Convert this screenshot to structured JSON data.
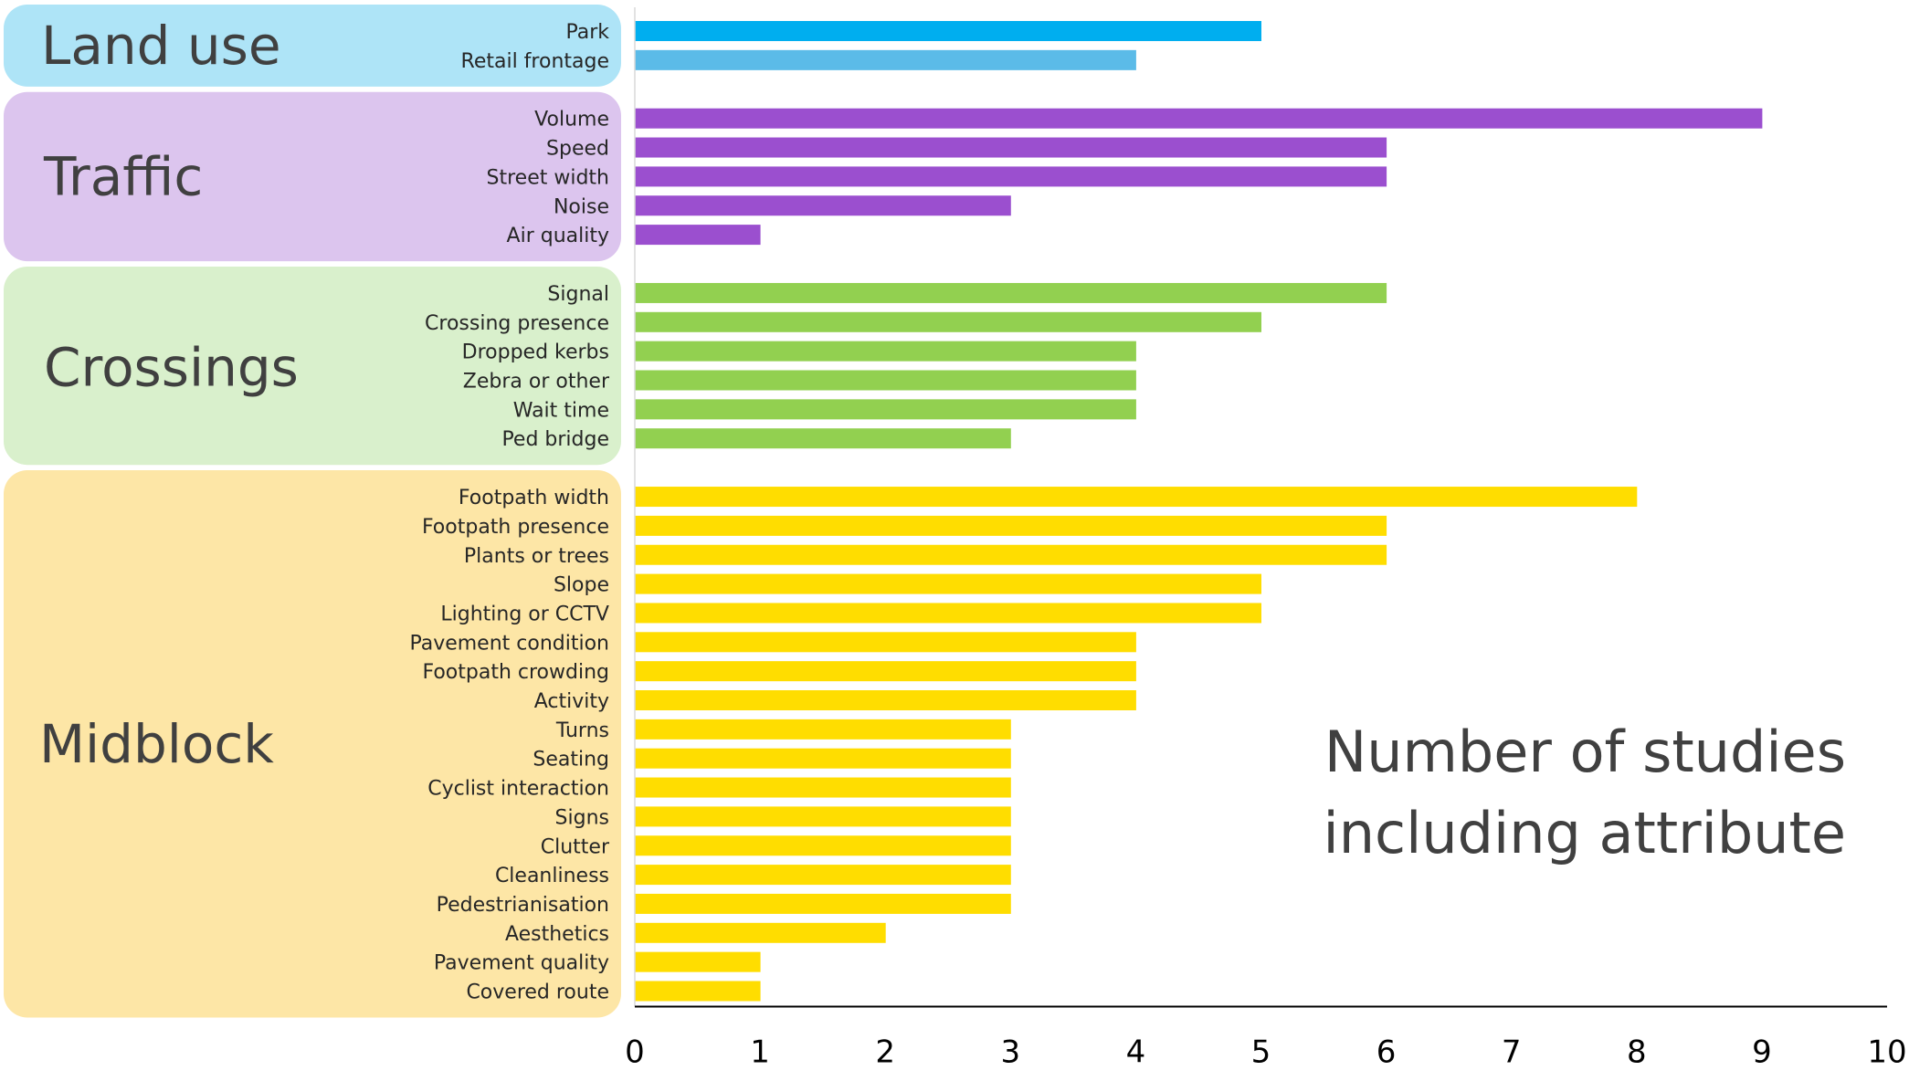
{
  "chart_data": {
    "type": "bar",
    "orientation": "horizontal",
    "axis_title_lines": [
      "Number of studies",
      "including attribute"
    ],
    "xlim": [
      0,
      10
    ],
    "x_ticks": [
      "0",
      "1",
      "2",
      "3",
      "4",
      "5",
      "6",
      "7",
      "8",
      "9",
      "10"
    ],
    "grid": false,
    "groups": [
      {
        "name": "Land use",
        "panel_color": "#aee4f7",
        "categories": [
          {
            "label": "Park",
            "value": 5,
            "color": "#00aeef"
          },
          {
            "label": "Retail frontage",
            "value": 4,
            "color": "#5bbbe8"
          }
        ]
      },
      {
        "name": "Traffic",
        "panel_color": "#dcc5ee",
        "categories": [
          {
            "label": "Volume",
            "value": 9,
            "color": "#9b4fcf"
          },
          {
            "label": "Speed",
            "value": 6,
            "color": "#9b4fcf"
          },
          {
            "label": "Street width",
            "value": 6,
            "color": "#9b4fcf"
          },
          {
            "label": "Noise",
            "value": 3,
            "color": "#9b4fcf"
          },
          {
            "label": "Air quality",
            "value": 1,
            "color": "#9b4fcf"
          }
        ]
      },
      {
        "name": "Crossings",
        "panel_color": "#d9f0cc",
        "categories": [
          {
            "label": "Signal",
            "value": 6,
            "color": "#92d050"
          },
          {
            "label": "Crossing presence",
            "value": 5,
            "color": "#92d050"
          },
          {
            "label": "Dropped kerbs",
            "value": 4,
            "color": "#92d050"
          },
          {
            "label": "Zebra or other",
            "value": 4,
            "color": "#92d050"
          },
          {
            "label": "Wait time",
            "value": 4,
            "color": "#92d050"
          },
          {
            "label": "Ped bridge",
            "value": 3,
            "color": "#92d050"
          }
        ]
      },
      {
        "name": "Midblock",
        "panel_color": "#fde6a6",
        "categories": [
          {
            "label": "Footpath width",
            "value": 8,
            "color": "#ffdd00"
          },
          {
            "label": "Footpath presence",
            "value": 6,
            "color": "#ffdd00"
          },
          {
            "label": "Plants or trees",
            "value": 6,
            "color": "#ffdd00"
          },
          {
            "label": "Slope",
            "value": 5,
            "color": "#ffdd00"
          },
          {
            "label": "Lighting or CCTV",
            "value": 5,
            "color": "#ffdd00"
          },
          {
            "label": "Pavement condition",
            "value": 4,
            "color": "#ffdd00"
          },
          {
            "label": "Footpath crowding",
            "value": 4,
            "color": "#ffdd00"
          },
          {
            "label": "Activity",
            "value": 4,
            "color": "#ffdd00"
          },
          {
            "label": "Turns",
            "value": 3,
            "color": "#ffdd00"
          },
          {
            "label": "Seating",
            "value": 3,
            "color": "#ffdd00"
          },
          {
            "label": "Cyclist interaction",
            "value": 3,
            "color": "#ffdd00"
          },
          {
            "label": "Signs",
            "value": 3,
            "color": "#ffdd00"
          },
          {
            "label": "Clutter",
            "value": 3,
            "color": "#ffdd00"
          },
          {
            "label": "Cleanliness",
            "value": 3,
            "color": "#ffdd00"
          },
          {
            "label": "Pedestrianisation",
            "value": 3,
            "color": "#ffdd00"
          },
          {
            "label": "Aesthetics",
            "value": 2,
            "color": "#ffdd00"
          },
          {
            "label": "Pavement quality",
            "value": 1,
            "color": "#ffdd00"
          },
          {
            "label": "Covered route",
            "value": 1,
            "color": "#ffdd00"
          }
        ]
      }
    ]
  }
}
